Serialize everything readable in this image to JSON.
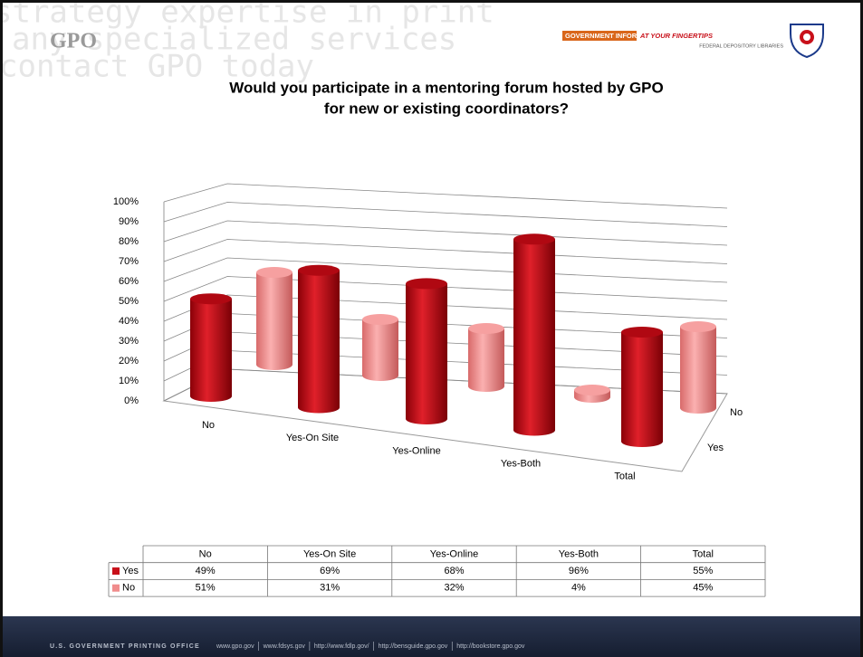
{
  "header": {
    "logo": "GPO",
    "watermark": [
      "strategy expertise in print",
      "any specialized services",
      "contact GPO today"
    ],
    "banner_main": "GOVERNMENT INFORMATION",
    "banner_accent": "AT YOUR FINGERTIPS",
    "banner_sub": "FEDERAL DEPOSITORY LIBRARIES"
  },
  "chart_data": {
    "type": "bar3d",
    "title": [
      "Would you participate in a mentoring forum hosted by GPO",
      "for new or existing coordinators?"
    ],
    "categories": [
      "No",
      "Yes-On Site",
      "Yes-Online",
      "Yes-Both",
      "Total"
    ],
    "series": [
      {
        "name": "Yes",
        "color": "#c8101a",
        "values": [
          49,
          69,
          68,
          96,
          55
        ],
        "value_labels": [
          "49%",
          "69%",
          "68%",
          "96%",
          "55%"
        ]
      },
      {
        "name": "No",
        "color": "#f08c8c",
        "values": [
          51,
          31,
          32,
          4,
          45
        ],
        "value_labels": [
          "51%",
          "31%",
          "32%",
          "4%",
          "45%"
        ]
      }
    ],
    "ylim": [
      0,
      100
    ],
    "yticks": [
      {
        "value": 0,
        "label": "0%"
      },
      {
        "value": 10,
        "label": "10%"
      },
      {
        "value": 20,
        "label": "20%"
      },
      {
        "value": 30,
        "label": "30%"
      },
      {
        "value": 40,
        "label": "40%"
      },
      {
        "value": 50,
        "label": "50%"
      },
      {
        "value": 60,
        "label": "60%"
      },
      {
        "value": 70,
        "label": "70%"
      },
      {
        "value": 80,
        "label": "80%"
      },
      {
        "value": 90,
        "label": "90%"
      },
      {
        "value": 100,
        "label": "100%"
      }
    ],
    "grid": true
  },
  "footer": {
    "org": "U.S. GOVERNMENT PRINTING OFFICE",
    "links": [
      "www.gpo.gov",
      "www.fdsys.gov",
      "http://www.fdlp.gov/",
      "http://bensguide.gpo.gov",
      "http://bookstore.gpo.gov"
    ]
  }
}
